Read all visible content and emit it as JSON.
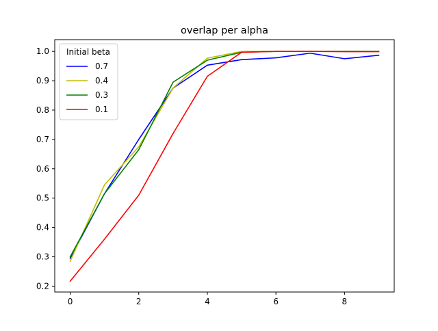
{
  "chart_data": {
    "type": "line",
    "title": "overlap per alpha",
    "xlabel": "",
    "ylabel": "",
    "xlim": [
      -0.45,
      9.45
    ],
    "ylim": [
      0.18,
      1.04
    ],
    "xticks": [
      0,
      2,
      4,
      6,
      8
    ],
    "yticks": [
      0.2,
      0.3,
      0.4,
      0.5,
      0.6,
      0.7,
      0.8,
      0.9,
      1.0
    ],
    "ytick_labels": [
      "0.2",
      "0.3",
      "0.4",
      "0.5",
      "0.6",
      "0.7",
      "0.8",
      "0.9",
      "1.0"
    ],
    "grid": false,
    "legend": {
      "title": "Initial beta",
      "position": "upper-left"
    },
    "x": [
      0,
      1,
      2,
      3,
      4,
      5,
      6,
      7,
      8,
      9
    ],
    "series": [
      {
        "name": "0.7",
        "color": "#0000ff",
        "values": [
          0.295,
          0.515,
          0.7,
          0.875,
          0.953,
          0.972,
          0.978,
          0.994,
          0.975,
          0.987
        ]
      },
      {
        "name": "0.4",
        "color": "#bfbf00",
        "values": [
          0.285,
          0.545,
          0.675,
          0.875,
          0.977,
          1.0,
          1.0,
          1.0,
          1.0,
          1.0
        ]
      },
      {
        "name": "0.3",
        "color": "#008000",
        "values": [
          0.3,
          0.515,
          0.665,
          0.895,
          0.97,
          0.997,
          1.0,
          1.0,
          1.0,
          1.0
        ]
      },
      {
        "name": "0.1",
        "color": "#ff0000",
        "values": [
          0.217,
          0.36,
          0.51,
          0.72,
          0.915,
          0.997,
          1.0,
          1.0,
          0.999,
          0.999
        ]
      }
    ]
  }
}
